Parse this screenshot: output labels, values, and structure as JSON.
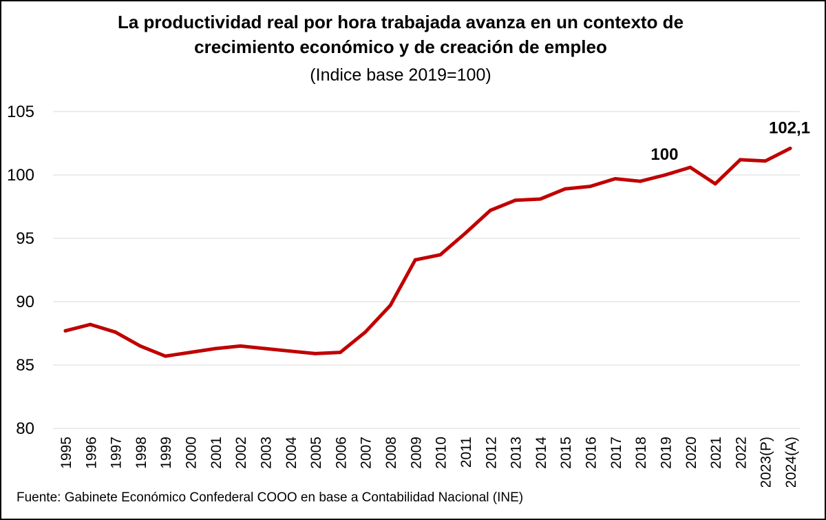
{
  "chart_data": {
    "type": "line",
    "title_lines": [
      "La productividad real por hora trabajada avanza en un contexto de",
      "crecimiento económico y de creación de empleo"
    ],
    "subtitle": "(Indice base 2019=100)",
    "xlabel": "",
    "ylabel": "",
    "ylim": [
      80,
      105
    ],
    "yticks": [
      "80",
      "85",
      "90",
      "95",
      "100",
      "105"
    ],
    "grid": true,
    "categories": [
      "1995",
      "1996",
      "1997",
      "1998",
      "1999",
      "2000",
      "2001",
      "2002",
      "2003",
      "2004",
      "2005",
      "2006",
      "2007",
      "2008",
      "2009",
      "2010",
      "2011",
      "2012",
      "2013",
      "2014",
      "2015",
      "2016",
      "2017",
      "2018",
      "2019",
      "2020",
      "2021",
      "2022",
      "2023(P)",
      "2024(A)"
    ],
    "series": [
      {
        "name": "Productividad real por hora trabajada",
        "color": "#C00000",
        "values": [
          87.7,
          88.2,
          87.6,
          86.5,
          85.7,
          86.0,
          86.3,
          86.5,
          86.3,
          86.1,
          85.9,
          86.0,
          87.6,
          89.7,
          93.3,
          93.7,
          95.4,
          97.2,
          98.0,
          98.1,
          98.9,
          99.1,
          99.7,
          99.5,
          100.0,
          100.6,
          99.3,
          101.2,
          101.1,
          102.1
        ]
      }
    ],
    "annotations": [
      {
        "category": "2019",
        "value": 100.0,
        "label": "100"
      },
      {
        "category": "2024(A)",
        "value": 102.1,
        "label": "102,1"
      }
    ],
    "source": "Fuente: Gabinete Económico Confederal COOO en base a Contabilidad Nacional (INE)"
  }
}
